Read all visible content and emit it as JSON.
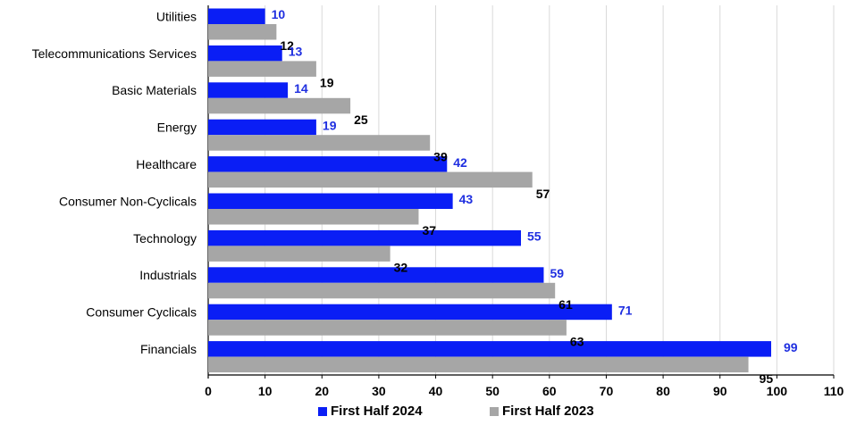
{
  "chart_data": {
    "type": "bar",
    "orientation": "horizontal",
    "title": "",
    "xlabel": "",
    "ylabel": "",
    "categories": [
      "Utilities",
      "Telecommunications Services",
      "Basic Materials",
      "Energy",
      "Healthcare",
      "Consumer Non-Cyclicals",
      "Technology",
      "Industrials",
      "Consumer Cyclicals",
      "Financials"
    ],
    "series": [
      {
        "name": "First Half 2024",
        "color": "#0a1ef5",
        "label_color": "#1f2fe0",
        "values": [
          10,
          13,
          14,
          19,
          42,
          43,
          55,
          59,
          71,
          99
        ]
      },
      {
        "name": "First Half 2023",
        "color": "#a6a6a6",
        "label_color": "#000000",
        "values": [
          12,
          19,
          25,
          39,
          57,
          37,
          32,
          61,
          63,
          95
        ]
      }
    ],
    "xlim": [
      0,
      110
    ],
    "xticks": [
      0,
      10,
      20,
      30,
      40,
      50,
      60,
      70,
      80,
      90,
      100,
      110
    ],
    "grid": true,
    "legend_position": "bottom-center"
  }
}
